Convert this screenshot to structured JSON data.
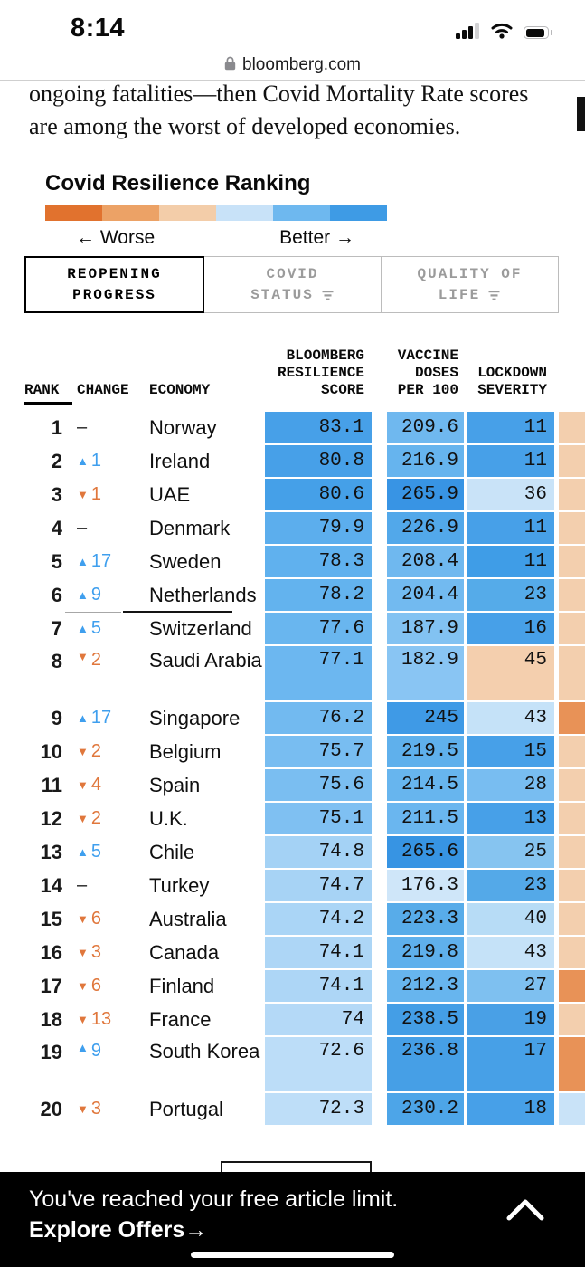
{
  "status_bar": {
    "time": "8:14"
  },
  "url_bar": {
    "domain": "bloomberg.com",
    "lock_icon": "lock-icon"
  },
  "article": {
    "line1": "ongoing fatalities—then Covid Mortality Rate scores",
    "line2": "are among the worst of developed economies."
  },
  "ranking": {
    "title": "Covid Resilience Ranking",
    "scale": {
      "worse_label": "← Worse",
      "better_label": "Better →",
      "colors": [
        "#e1722e",
        "#eca266",
        "#f3cda9",
        "#c8e2f8",
        "#6eb8ef",
        "#3e9be5"
      ]
    },
    "tabs": [
      {
        "line1": "REOPENING",
        "line2": "PROGRESS",
        "active": true
      },
      {
        "line1": "COVID",
        "line2": "STATUS",
        "active": false
      },
      {
        "line1": "QUALITY OF",
        "line2": "LIFE",
        "active": false
      }
    ]
  },
  "chart_data": {
    "type": "table",
    "headers": {
      "rank": "RANK",
      "change": "CHANGE",
      "economy": "ECONOMY",
      "score": "BLOOMBERG\nRESILIENCE\nSCORE",
      "vaccine": "VACCINE\nDOSES\nPER 100",
      "lockdown": "LOCKDOWN\nSEVERITY"
    },
    "arrow_colors": {
      "up": "#3f9fee",
      "down": "#e0773c"
    },
    "rows": [
      {
        "rank": "1",
        "dir": "none",
        "change": "",
        "economy": "Norway",
        "score": "83.1",
        "vaccine": "209.6",
        "lockdown": "11",
        "colors": {
          "score": "#47a0e8",
          "vaccine": "#6fb8ef",
          "lockdown": "#47a0e8",
          "extra": "#f3cfae"
        }
      },
      {
        "rank": "2",
        "dir": "up",
        "change": "1",
        "economy": "Ireland",
        "score": "80.8",
        "vaccine": "216.9",
        "lockdown": "11",
        "colors": {
          "score": "#47a0e8",
          "vaccine": "#66b4ee",
          "lockdown": "#47a0e8",
          "extra": "#f3cfae"
        }
      },
      {
        "rank": "3",
        "dir": "down",
        "change": "1",
        "economy": "UAE",
        "score": "80.6",
        "vaccine": "265.9",
        "lockdown": "36",
        "colors": {
          "score": "#45a0e8",
          "vaccine": "#3894e4",
          "lockdown": "#c9e3f8",
          "extra": "#f3cfae"
        }
      },
      {
        "rank": "4",
        "dir": "none",
        "change": "",
        "economy": "Denmark",
        "score": "79.9",
        "vaccine": "226.9",
        "lockdown": "11",
        "colors": {
          "score": "#5caeed",
          "vaccine": "#52a8ea",
          "lockdown": "#47a0e8",
          "extra": "#f3cfae"
        }
      },
      {
        "rank": "5",
        "dir": "up",
        "change": "17",
        "economy": "Sweden",
        "score": "78.3",
        "vaccine": "208.4",
        "lockdown": "11",
        "colors": {
          "score": "#60b1ee",
          "vaccine": "#6fb8ef",
          "lockdown": "#3f9de7",
          "extra": "#f3cfae"
        }
      },
      {
        "rank": "6",
        "dir": "up",
        "change": "9",
        "economy": "Netherlands",
        "score": "78.2",
        "vaccine": "204.4",
        "lockdown": "23",
        "colors": {
          "score": "#63b3ee",
          "vaccine": "#72baf0",
          "lockdown": "#55abe9",
          "extra": "#f3cfae"
        }
      },
      {
        "rank": "7",
        "dir": "up",
        "change": "5",
        "economy": "Switzerland",
        "score": "77.6",
        "vaccine": "187.9",
        "lockdown": "16",
        "colors": {
          "score": "#69b6ef",
          "vaccine": "#82c2f2",
          "lockdown": "#47a0e8",
          "extra": "#f3cfae"
        }
      },
      {
        "rank": "8",
        "dir": "down",
        "change": "2",
        "economy": "Saudi Arabia",
        "tall": true,
        "score": "77.1",
        "vaccine": "182.9",
        "lockdown": "45",
        "colors": {
          "score": "#6cb7f0",
          "vaccine": "#89c5f3",
          "lockdown": "#f4cfae",
          "extra": "#f3cfae"
        }
      },
      {
        "rank": "9",
        "dir": "up",
        "change": "17",
        "economy": "Singapore",
        "score": "76.2",
        "vaccine": "245",
        "lockdown": "43",
        "colors": {
          "score": "#72baf0",
          "vaccine": "#3f9ae6",
          "lockdown": "#c5e2f8",
          "extra": "#e89257"
        }
      },
      {
        "rank": "10",
        "dir": "down",
        "change": "2",
        "economy": "Belgium",
        "score": "75.7",
        "vaccine": "219.5",
        "lockdown": "15",
        "colors": {
          "score": "#78bdf1",
          "vaccine": "#5fb0ec",
          "lockdown": "#47a0e8",
          "extra": "#f3cfae"
        }
      },
      {
        "rank": "11",
        "dir": "down",
        "change": "4",
        "economy": "Spain",
        "score": "75.6",
        "vaccine": "214.5",
        "lockdown": "28",
        "colors": {
          "score": "#7abef1",
          "vaccine": "#67b5ee",
          "lockdown": "#78bdf1",
          "extra": "#f3cfae"
        }
      },
      {
        "rank": "12",
        "dir": "down",
        "change": "2",
        "economy": "U.K.",
        "score": "75.1",
        "vaccine": "211.5",
        "lockdown": "13",
        "colors": {
          "score": "#7fc0f2",
          "vaccine": "#6ab6ef",
          "lockdown": "#47a0e8",
          "extra": "#f3cfae"
        }
      },
      {
        "rank": "13",
        "dir": "up",
        "change": "5",
        "economy": "Chile",
        "score": "74.8",
        "vaccine": "265.6",
        "lockdown": "25",
        "colors": {
          "score": "#a4d2f5",
          "vaccine": "#3794e3",
          "lockdown": "#86c4f0",
          "extra": "#f3cfae"
        }
      },
      {
        "rank": "14",
        "dir": "none",
        "change": "",
        "economy": "Turkey",
        "score": "74.7",
        "vaccine": "176.3",
        "lockdown": "23",
        "colors": {
          "score": "#a7d3f5",
          "vaccine": "#cfe6f9",
          "lockdown": "#54a9e8",
          "extra": "#f3cfae"
        }
      },
      {
        "rank": "15",
        "dir": "down",
        "change": "6",
        "economy": "Australia",
        "score": "74.2",
        "vaccine": "223.3",
        "lockdown": "40",
        "colors": {
          "score": "#aad5f6",
          "vaccine": "#58ace9",
          "lockdown": "#b7dcf6",
          "extra": "#f3cfae"
        }
      },
      {
        "rank": "16",
        "dir": "down",
        "change": "3",
        "economy": "Canada",
        "score": "74.1",
        "vaccine": "219.8",
        "lockdown": "43",
        "colors": {
          "score": "#add6f6",
          "vaccine": "#5fb0ec",
          "lockdown": "#c5e2f8",
          "extra": "#f3cfae"
        }
      },
      {
        "rank": "17",
        "dir": "down",
        "change": "6",
        "economy": "Finland",
        "score": "74.1",
        "vaccine": "212.3",
        "lockdown": "27",
        "colors": {
          "score": "#add6f6",
          "vaccine": "#67b5ee",
          "lockdown": "#7ec0f0",
          "extra": "#e89257"
        }
      },
      {
        "rank": "18",
        "dir": "down",
        "change": "13",
        "economy": "France",
        "score": "74",
        "vaccine": "238.5",
        "lockdown": "19",
        "colors": {
          "score": "#b4d9f7",
          "vaccine": "#449ee6",
          "lockdown": "#49a0e6",
          "extra": "#f3cfae"
        }
      },
      {
        "rank": "19",
        "dir": "up",
        "change": "9",
        "economy": "South Korea",
        "tall": true,
        "score": "72.6",
        "vaccine": "236.8",
        "lockdown": "17",
        "colors": {
          "score": "#bcddf8",
          "vaccine": "#469fe6",
          "lockdown": "#47a0e7",
          "extra": "#e89257"
        }
      },
      {
        "rank": "20",
        "dir": "down",
        "change": "3",
        "economy": "Portugal",
        "score": "72.3",
        "vaccine": "230.2",
        "lockdown": "18",
        "colors": {
          "score": "#bedef8",
          "vaccine": "#4da5e8",
          "lockdown": "#47a0e8",
          "extra": "#c9e3f8"
        }
      }
    ]
  },
  "paywall": {
    "message": "You've reached your free article limit. ",
    "cta": "Explore Offers",
    "cta_arrow": "→"
  }
}
